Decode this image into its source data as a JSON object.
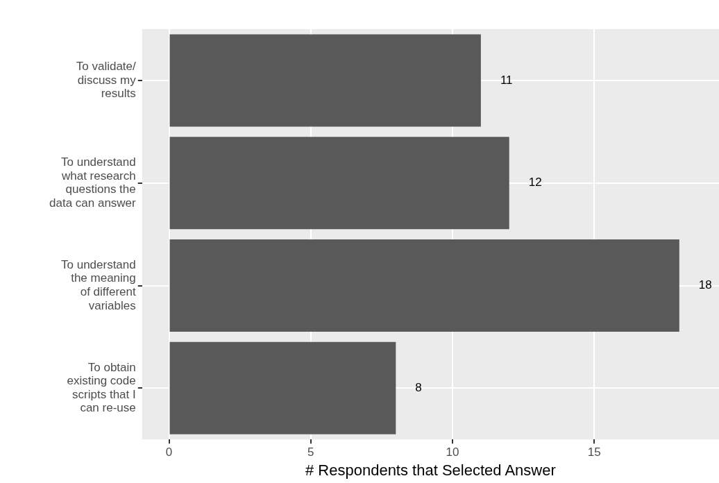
{
  "chart_data": {
    "type": "bar",
    "orientation": "horizontal",
    "xlabel": "# Respondents that Selected Answer",
    "categories": [
      "To validate/\ndiscuss my\nresults",
      "To understand\nwhat research\nquestions the\ndata can answer",
      "To understand\nthe meaning\nof different\nvariables",
      "To obtain\nexisting code\nscripts that I\ncan re-use"
    ],
    "values": [
      11,
      12,
      18,
      8
    ],
    "color": "#595959",
    "data_labels": true,
    "xlim": [
      -0.95,
      19.4
    ],
    "xticks": [
      0,
      5,
      10,
      15
    ],
    "grid": true,
    "legend": false
  }
}
